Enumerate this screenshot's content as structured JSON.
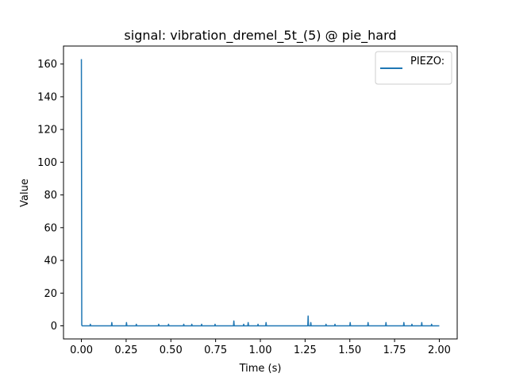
{
  "chart_data": {
    "type": "line",
    "title": "signal: vibration_dremel_5t_(5) @ pie_hard",
    "xlabel": "Time (s)",
    "ylabel": "Value",
    "xlim": [
      -0.1,
      2.1
    ],
    "ylim": [
      -8,
      171
    ],
    "xticks": [
      0.0,
      0.25,
      0.5,
      0.75,
      1.0,
      1.25,
      1.5,
      1.75,
      2.0
    ],
    "xtick_labels": [
      "0.00",
      "0.25",
      "0.50",
      "0.75",
      "1.00",
      "1.25",
      "1.50",
      "1.75",
      "2.00"
    ],
    "yticks": [
      0,
      20,
      40,
      60,
      80,
      100,
      120,
      140,
      160
    ],
    "ytick_labels": [
      "0",
      "20",
      "40",
      "60",
      "80",
      "100",
      "120",
      "140",
      "160"
    ],
    "grid": false,
    "legend_position": "top-right",
    "series": [
      {
        "name": "PIEZO:",
        "color": "#1f77b4",
        "x": [
          0.0,
          0.002,
          0.004,
          0.048,
          0.05,
          0.052,
          0.168,
          0.17,
          0.172,
          0.25,
          0.252,
          0.254,
          0.305,
          0.307,
          0.309,
          0.43,
          0.432,
          0.434,
          0.485,
          0.487,
          0.489,
          0.57,
          0.572,
          0.574,
          0.615,
          0.617,
          0.619,
          0.67,
          0.672,
          0.674,
          0.745,
          0.747,
          0.749,
          0.85,
          0.852,
          0.854,
          0.905,
          0.907,
          0.909,
          0.93,
          0.932,
          0.934,
          0.985,
          0.987,
          0.989,
          1.03,
          1.032,
          1.034,
          1.265,
          1.267,
          1.269,
          1.28,
          1.282,
          1.284,
          1.365,
          1.367,
          1.369,
          1.415,
          1.417,
          1.419,
          1.5,
          1.502,
          1.504,
          1.6,
          1.602,
          1.604,
          1.7,
          1.702,
          1.704,
          1.8,
          1.802,
          1.804,
          1.845,
          1.847,
          1.849,
          1.9,
          1.902,
          1.904,
          1.955,
          1.957,
          1.959,
          2.0
        ],
        "values": [
          163,
          0.5,
          0,
          0,
          1,
          0,
          0,
          2,
          0,
          0,
          2,
          0,
          0,
          1,
          0,
          0,
          1,
          0,
          0,
          1,
          0,
          0,
          1,
          0,
          0,
          1,
          0,
          0,
          1,
          0,
          0,
          1,
          0,
          0,
          3,
          0,
          0,
          1,
          0,
          0,
          2,
          0,
          0,
          1,
          0,
          0,
          2,
          0,
          0,
          6,
          0,
          0,
          2,
          0,
          0,
          1,
          0,
          0,
          1,
          0,
          0,
          2,
          0,
          0,
          2,
          0,
          0,
          2,
          0,
          0,
          2,
          0,
          0,
          1,
          0,
          0,
          2,
          0,
          0,
          1,
          0,
          0
        ]
      }
    ]
  }
}
